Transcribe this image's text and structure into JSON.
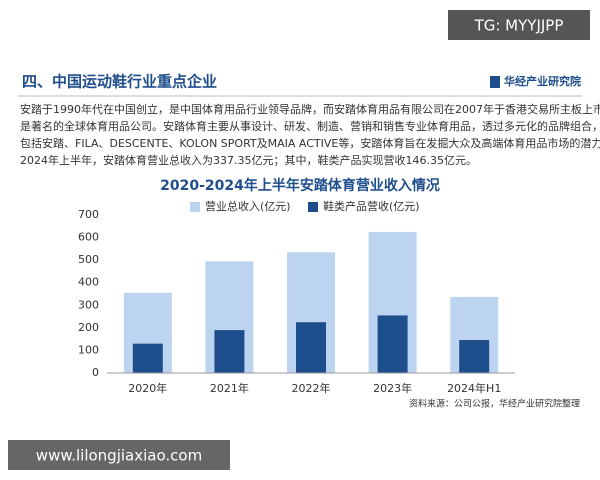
{
  "watermark_top": "TG: MYYJJPP",
  "header": {
    "title": "四、中国运动鞋行业重点企业",
    "logo": "华经产业研究院"
  },
  "paragraph": [
    "安踏于1990年代在中国创立，是中国体育用品行业领导品牌，而安踏体育用品有限公司在2007年于香港交易所主板上市，",
    "是著名的全球体育用品公司。安踏体育主要从事设计、研发、制造、营销和销售专业体育用品，透过多元化的品牌组合，",
    "包括安踏、FILA、DESCENTE、KOLON SPORT及MAIA ACTIVE等，安踏体育旨在发掘大众及高端体育用品市场的潜力。",
    "2024年上半年，安踏体育营业总收入为337.35亿元；其中，鞋类产品实现营收146.35亿元。"
  ],
  "chart_data": {
    "type": "bar",
    "title": "2020-2024年上半年安踏体育营业收入情况",
    "categories": [
      "2020年",
      "2021年",
      "2022年",
      "2023年",
      "2024年H1"
    ],
    "series": [
      {
        "name": "营业总收入(亿元)",
        "color": "#bcd4f0",
        "values": [
          355,
          495,
          535,
          625,
          337
        ]
      },
      {
        "name": "鞋类产品营收(亿元)",
        "color": "#1f4e8c",
        "values": [
          130,
          190,
          225,
          255,
          146
        ]
      }
    ],
    "ylim": [
      0,
      700
    ],
    "yticks": [
      0,
      100,
      200,
      300,
      400,
      500,
      600,
      700
    ],
    "grid": false,
    "legend": "top"
  },
  "source": "资料来源：公司公报，华经产业研究院整理",
  "watermark_bottom": "www.lilongjiaxiao.com"
}
